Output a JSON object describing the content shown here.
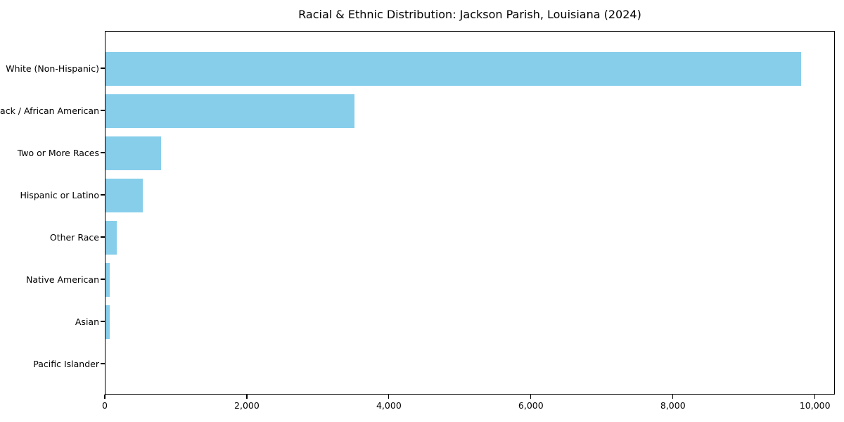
{
  "title": "Racial & Ethnic Distribution: Jackson Parish, Louisiana (2024)",
  "colors": {
    "bar": "#87CEEB",
    "axis": "#000000",
    "text": "#000000",
    "background": "#FFFFFF"
  },
  "chart_data": {
    "type": "bar",
    "orientation": "horizontal",
    "title": "Racial & Ethnic Distribution: Jackson Parish, Louisiana (2024)",
    "categories": [
      "White (Non-Hispanic)",
      "Black / African American",
      "Two or More Races",
      "Hispanic or Latino",
      "Other Race",
      "Native American",
      "Asian",
      "Pacific Islander"
    ],
    "values": [
      9790,
      3510,
      785,
      525,
      160,
      60,
      55,
      0
    ],
    "xlabel": "",
    "ylabel": "",
    "xlim": [
      0,
      10280
    ],
    "xticks": [
      0,
      2000,
      4000,
      6000,
      8000,
      10000
    ],
    "xtick_labels": [
      "0",
      "2,000",
      "4,000",
      "6,000",
      "8,000",
      "10,000"
    ],
    "grid": false,
    "legend": null,
    "bar_color": "#87CEEB"
  }
}
